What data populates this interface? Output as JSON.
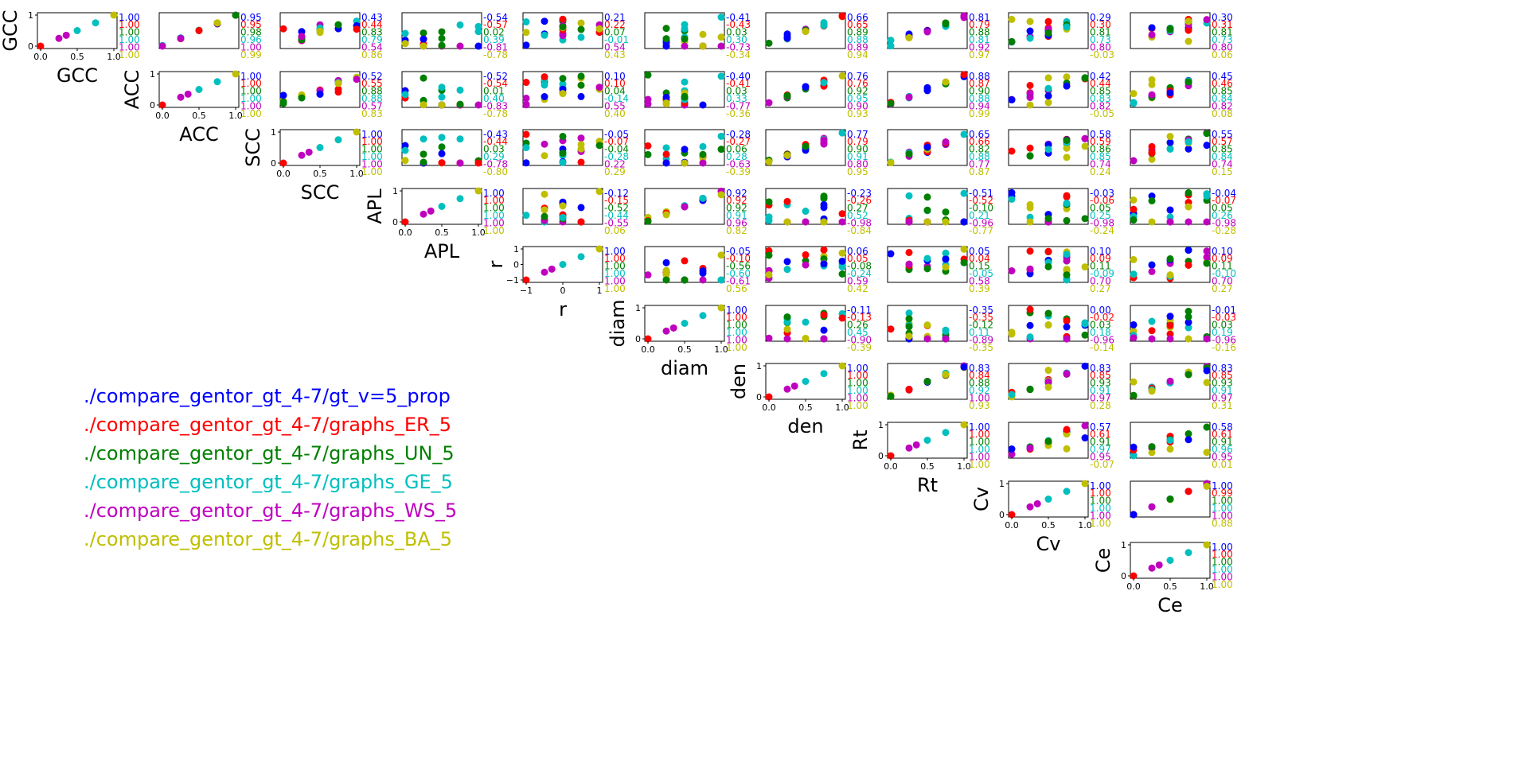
{
  "chart_data": {
    "type": "scatter",
    "layout": "pairplot-upper-triangle",
    "variables": [
      "GCC",
      "ACC",
      "SCC",
      "APL",
      "r",
      "diam",
      "den",
      "Rt",
      "Cv",
      "Ce"
    ],
    "series": [
      {
        "name": "./compare_gentor_gt_4-7/gt_v=5_prop",
        "color": "#0000ff"
      },
      {
        "name": "./compare_gentor_gt_4-7/graphs_ER_5",
        "color": "#ff0000"
      },
      {
        "name": "./compare_gentor_gt_4-7/graphs_UN_5",
        "color": "#008000"
      },
      {
        "name": "./compare_gentor_gt_4-7/graphs_GE_5",
        "color": "#00bfbf"
      },
      {
        "name": "./compare_gentor_gt_4-7/graphs_WS_5",
        "color": "#bf00bf"
      },
      {
        "name": "./compare_gentor_gt_4-7/graphs_BA_5",
        "color": "#bfbf00"
      }
    ],
    "axes": {
      "GCC": {
        "lim": [
          0,
          1
        ],
        "ticks": [
          "0.0",
          "0.5",
          "1.0"
        ],
        "yticks": [
          "0",
          "1"
        ]
      },
      "ACC": {
        "lim": [
          0,
          1
        ],
        "ticks": [
          "0.0",
          "0.5",
          "1.0"
        ],
        "yticks": [
          "0",
          "1"
        ]
      },
      "SCC": {
        "lim": [
          0,
          1
        ],
        "ticks": [
          "0.0",
          "0.5",
          "1.0"
        ],
        "yticks": [
          "0",
          "1"
        ]
      },
      "APL": {
        "lim": [
          0,
          1
        ],
        "ticks": [
          "0.0",
          "0.5",
          "1.0"
        ],
        "yticks": [
          "0",
          "1"
        ]
      },
      "r": {
        "lim": [
          -1,
          1
        ],
        "ticks": [
          "−1",
          "0",
          "1"
        ],
        "yticks": [
          "−1",
          "0",
          "1"
        ]
      },
      "diam": {
        "lim": [
          0,
          1
        ],
        "ticks": [
          "0.0",
          "0.5",
          "1.0"
        ],
        "yticks": [
          "0",
          "1"
        ]
      },
      "den": {
        "lim": [
          0,
          1
        ],
        "ticks": [
          "0.0",
          "0.5",
          "1.0"
        ],
        "yticks": [
          "0",
          "1"
        ]
      },
      "Rt": {
        "lim": [
          0,
          1
        ],
        "ticks": [
          "0.0",
          "0.5",
          "1.0"
        ],
        "yticks": [
          "0",
          "1"
        ]
      },
      "Cv": {
        "lim": [
          0,
          1
        ],
        "ticks": [
          "0.0",
          "0.5",
          "1.0"
        ],
        "yticks": [
          "0",
          "1"
        ]
      },
      "Ce": {
        "lim": [
          0,
          1
        ],
        "ticks": [
          "0.0",
          "0.5",
          "1.0"
        ],
        "yticks": [
          "0",
          "1"
        ]
      }
    },
    "correlations": {
      "GCC-ACC": [
        "0.95",
        "0.95",
        "0.98",
        "0.96",
        "1.00",
        "0.99"
      ],
      "GCC-SCC": [
        "0.43",
        "0.44",
        "0.83",
        "0.79",
        "0.54",
        "0.86"
      ],
      "GCC-APL": [
        "-0.54",
        "-0.57",
        "0.02",
        "0.39",
        "-0.81",
        "-0.78"
      ],
      "GCC-r": [
        "0.21",
        "0.22",
        "0.07",
        "-0.01",
        "0.54",
        "0.43"
      ],
      "GCC-diam": [
        "-0.41",
        "-0.43",
        "0.03",
        "0.30",
        "-0.73",
        "-0.34"
      ],
      "GCC-den": [
        "0.66",
        "0.65",
        "0.89",
        "0.88",
        "0.89",
        "0.94"
      ],
      "GCC-Rt": [
        "0.81",
        "0.79",
        "0.88",
        "0.81",
        "0.92",
        "0.97"
      ],
      "GCC-Cv": [
        "0.29",
        "0.30",
        "0.81",
        "0.73",
        "0.80",
        "-0.03"
      ],
      "GCC-Ce": [
        "0.30",
        "0.31",
        "0.81",
        "0.73",
        "0.80",
        "0.06"
      ],
      "ACC-SCC": [
        "0.52",
        "0.55",
        "0.88",
        "0.88",
        "0.57",
        "0.83"
      ],
      "ACC-APL": [
        "-0.52",
        "-0.54",
        "0.01",
        "0.40",
        "-0.83",
        "-0.78"
      ],
      "ACC-r": [
        "0.10",
        "0.10",
        "0.04",
        "-0.14",
        "0.55",
        "0.40"
      ],
      "ACC-diam": [
        "-0.40",
        "-0.41",
        "0.03",
        "0.33",
        "-0.77",
        "-0.36"
      ],
      "ACC-den": [
        "0.76",
        "0.76",
        "0.92",
        "0.95",
        "0.90",
        "0.93"
      ],
      "ACC-Rt": [
        "0.88",
        "0.87",
        "0.90",
        "0.88",
        "0.94",
        "0.99"
      ],
      "ACC-Cv": [
        "0.42",
        "0.44",
        "0.85",
        "0.83",
        "0.82",
        "-0.05"
      ],
      "ACC-Ce": [
        "0.45",
        "0.46",
        "0.85",
        "0.84",
        "0.82",
        "0.08"
      ],
      "SCC-APL": [
        "-0.43",
        "-0.44",
        "0.03",
        "0.29",
        "-0.78",
        "-0.80"
      ],
      "SCC-r": [
        "-0.05",
        "-0.07",
        "-0.04",
        "-0.28",
        "0.22",
        "0.29"
      ],
      "SCC-diam": [
        "-0.28",
        "-0.27",
        "0.06",
        "0.28",
        "-0.63",
        "-0.39"
      ],
      "SCC-den": [
        "0.77",
        "0.79",
        "0.90",
        "0.91",
        "0.80",
        "0.95"
      ],
      "SCC-Rt": [
        "0.65",
        "0.66",
        "0.82",
        "0.88",
        "0.77",
        "0.87"
      ],
      "SCC-Cv": [
        "0.58",
        "0.59",
        "0.86",
        "0.85",
        "0.74",
        "0.24"
      ],
      "SCC-Ce": [
        "0.55",
        "0.57",
        "0.85",
        "0.84",
        "0.74",
        "0.15"
      ],
      "APL-r": [
        "-0.12",
        "-0.15",
        "-0.52",
        "-0.44",
        "-0.55",
        "0.06"
      ],
      "APL-diam": [
        "0.92",
        "0.92",
        "0.92",
        "0.91",
        "0.96",
        "0.82"
      ],
      "APL-den": [
        "-0.23",
        "-0.26",
        "0.27",
        "0.52",
        "-0.98",
        "-0.84"
      ],
      "APL-Rt": [
        "-0.51",
        "-0.52",
        "-0.10",
        "0.21",
        "-0.96",
        "-0.77"
      ],
      "APL-Cv": [
        "-0.03",
        "-0.06",
        "0.05",
        "0.25",
        "-0.98",
        "-0.24"
      ],
      "APL-Ce": [
        "-0.04",
        "-0.07",
        "0.05",
        "0.26",
        "-0.98",
        "-0.28"
      ],
      "r-diam": [
        "-0.05",
        "-0.10",
        "-0.56",
        "-0.60",
        "-0.61",
        "0.56"
      ],
      "r-den": [
        "0.06",
        "0.05",
        "-0.08",
        "-0.24",
        "0.59",
        "0.42"
      ],
      "r-Rt": [
        "0.05",
        "0.04",
        "0.15",
        "-0.05",
        "0.58",
        "0.39"
      ],
      "r-Cv": [
        "0.10",
        "0.09",
        "0.11",
        "-0.09",
        "0.70",
        "0.27"
      ],
      "r-Ce": [
        "0.10",
        "0.09",
        "0.11",
        "-0.10",
        "0.70",
        "0.27"
      ],
      "diam-den": [
        "-0.11",
        "-0.13",
        "0.26",
        "0.45",
        "-0.90",
        "-0.39"
      ],
      "diam-Rt": [
        "-0.35",
        "-0.35",
        "-0.12",
        "0.11",
        "-0.89",
        "-0.35"
      ],
      "diam-Cv": [
        "0.00",
        "-0.02",
        "0.03",
        "0.18",
        "-0.96",
        "-0.14"
      ],
      "diam-Ce": [
        "-0.01",
        "-0.03",
        "0.03",
        "0.19",
        "-0.96",
        "-0.16"
      ],
      "den-Rt": [
        "0.83",
        "0.84",
        "0.88",
        "0.92",
        "1.00",
        "0.93"
      ],
      "den-Cv": [
        "0.83",
        "0.85",
        "0.93",
        "0.91",
        "0.97",
        "0.28"
      ],
      "den-Ce": [
        "0.83",
        "0.85",
        "0.93",
        "0.91",
        "0.97",
        "0.31"
      ],
      "Rt-Cv": [
        "0.57",
        "0.61",
        "0.91",
        "0.97",
        "0.95",
        "-0.07"
      ],
      "Rt-Ce": [
        "0.58",
        "0.61",
        "0.91",
        "0.96",
        "0.95",
        "0.01"
      ],
      "Cv-Ce": [
        "1.00",
        "0.99",
        "1.00",
        "1.00",
        "1.00",
        "0.88"
      ]
    },
    "diagonal_labels": [
      "1.00",
      "1.00",
      "1.00",
      "1.00",
      "1.00",
      "1.00"
    ]
  }
}
